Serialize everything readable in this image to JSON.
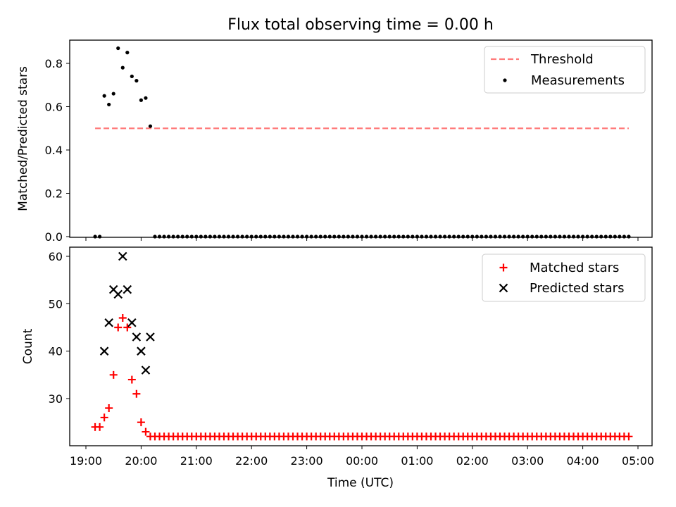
{
  "figure": {
    "title": "Flux total observing time = 0.00 h",
    "xlabel": "Time (UTC)",
    "colors": {
      "threshold": "#ff7b7b",
      "measurements": "#000000",
      "matched": "#ff0000",
      "predicted": "#000000"
    }
  },
  "chart_data": [
    {
      "type": "scatter",
      "panel": "top",
      "title": "Flux total observing time = 0.00 h",
      "xlabel": "",
      "ylabel": "Matched/Predicted stars",
      "x_axis": "time",
      "x_ticks": [
        "19:00",
        "20:00",
        "21:00",
        "22:00",
        "23:00",
        "00:00",
        "01:00",
        "02:00",
        "03:00",
        "04:00",
        "05:00"
      ],
      "ylim": [
        0,
        0.91
      ],
      "y_ticks": [
        "0.0",
        "0.2",
        "0.4",
        "0.6",
        "0.8"
      ],
      "grid": false,
      "legend_position": "top-right",
      "series": [
        {
          "name": "Threshold",
          "kind": "dashed-line",
          "x": [
            "19:10",
            "04:50"
          ],
          "y": [
            0.5,
            0.5
          ]
        },
        {
          "name": "Measurements",
          "kind": "points",
          "x": [
            "19:10",
            "19:15",
            "19:20",
            "19:25",
            "19:30",
            "19:35",
            "19:40",
            "19:45",
            "19:50",
            "19:55",
            "20:00",
            "20:05",
            "20:10",
            "20:15",
            "20:20",
            "20:25",
            "20:30",
            "20:35",
            "20:40",
            "20:45",
            "20:50",
            "20:55",
            "21:00",
            "21:05",
            "21:10",
            "21:15",
            "21:20",
            "21:25",
            "21:30",
            "21:35",
            "21:40",
            "21:45",
            "21:50",
            "21:55",
            "22:00",
            "22:05",
            "22:10",
            "22:15",
            "22:20",
            "22:25",
            "22:30",
            "22:35",
            "22:40",
            "22:45",
            "22:50",
            "22:55",
            "23:00",
            "23:05",
            "23:10",
            "23:15",
            "23:20",
            "23:25",
            "23:30",
            "23:35",
            "23:40",
            "23:45",
            "23:50",
            "23:55",
            "00:00",
            "00:05",
            "00:10",
            "00:15",
            "00:20",
            "00:25",
            "00:30",
            "00:35",
            "00:40",
            "00:45",
            "00:50",
            "00:55",
            "01:00",
            "01:05",
            "01:10",
            "01:15",
            "01:20",
            "01:25",
            "01:30",
            "01:35",
            "01:40",
            "01:45",
            "01:50",
            "01:55",
            "02:00",
            "02:05",
            "02:10",
            "02:15",
            "02:20",
            "02:25",
            "02:30",
            "02:35",
            "02:40",
            "02:45",
            "02:50",
            "02:55",
            "03:00",
            "03:05",
            "03:10",
            "03:15",
            "03:20",
            "03:25",
            "03:30",
            "03:35",
            "03:40",
            "03:45",
            "03:50",
            "03:55",
            "04:00",
            "04:05",
            "04:10",
            "04:15",
            "04:20",
            "04:25",
            "04:30",
            "04:35",
            "04:40",
            "04:45",
            "04:50"
          ],
          "y": [
            0,
            0,
            0.65,
            0.61,
            0.66,
            0.87,
            0.78,
            0.85,
            0.74,
            0.72,
            0.63,
            0.64,
            0.51,
            0,
            0,
            0,
            0,
            0,
            0,
            0,
            0,
            0,
            0,
            0,
            0,
            0,
            0,
            0,
            0,
            0,
            0,
            0,
            0,
            0,
            0,
            0,
            0,
            0,
            0,
            0,
            0,
            0,
            0,
            0,
            0,
            0,
            0,
            0,
            0,
            0,
            0,
            0,
            0,
            0,
            0,
            0,
            0,
            0,
            0,
            0,
            0,
            0,
            0,
            0,
            0,
            0,
            0,
            0,
            0,
            0,
            0,
            0,
            0,
            0,
            0,
            0,
            0,
            0,
            0,
            0,
            0,
            0,
            0,
            0,
            0,
            0,
            0,
            0,
            0,
            0,
            0,
            0,
            0,
            0,
            0,
            0,
            0,
            0,
            0,
            0,
            0,
            0,
            0,
            0,
            0,
            0,
            0,
            0,
            0,
            0,
            0,
            0,
            0,
            0,
            0,
            0,
            0
          ]
        }
      ]
    },
    {
      "type": "scatter",
      "panel": "bottom",
      "title": "",
      "xlabel": "Time (UTC)",
      "ylabel": "Count",
      "x_axis": "time",
      "x_ticks": [
        "19:00",
        "20:00",
        "21:00",
        "22:00",
        "23:00",
        "00:00",
        "01:00",
        "02:00",
        "03:00",
        "04:00",
        "05:00"
      ],
      "ylim": [
        20.5,
        61.8
      ],
      "y_ticks": [
        "30",
        "40",
        "50",
        "60"
      ],
      "grid": false,
      "legend_position": "top-right",
      "series": [
        {
          "name": "Matched stars",
          "kind": "plus-markers",
          "x": [
            "19:10",
            "19:15",
            "19:20",
            "19:25",
            "19:30",
            "19:35",
            "19:40",
            "19:45",
            "19:50",
            "19:55",
            "20:00",
            "20:05",
            "20:10",
            "20:15",
            "20:20",
            "20:25",
            "20:30",
            "20:35",
            "20:40",
            "20:45",
            "20:50",
            "20:55",
            "21:00",
            "21:05",
            "21:10",
            "21:15",
            "21:20",
            "21:25",
            "21:30",
            "21:35",
            "21:40",
            "21:45",
            "21:50",
            "21:55",
            "22:00",
            "22:05",
            "22:10",
            "22:15",
            "22:20",
            "22:25",
            "22:30",
            "22:35",
            "22:40",
            "22:45",
            "22:50",
            "22:55",
            "23:00",
            "23:05",
            "23:10",
            "23:15",
            "23:20",
            "23:25",
            "23:30",
            "23:35",
            "23:40",
            "23:45",
            "23:50",
            "23:55",
            "00:00",
            "00:05",
            "00:10",
            "00:15",
            "00:20",
            "00:25",
            "00:30",
            "00:35",
            "00:40",
            "00:45",
            "00:50",
            "00:55",
            "01:00",
            "01:05",
            "01:10",
            "01:15",
            "01:20",
            "01:25",
            "01:30",
            "01:35",
            "01:40",
            "01:45",
            "01:50",
            "01:55",
            "02:00",
            "02:05",
            "02:10",
            "02:15",
            "02:20",
            "02:25",
            "02:30",
            "02:35",
            "02:40",
            "02:45",
            "02:50",
            "02:55",
            "03:00",
            "03:05",
            "03:10",
            "03:15",
            "03:20",
            "03:25",
            "03:30",
            "03:35",
            "03:40",
            "03:45",
            "03:50",
            "03:55",
            "04:00",
            "04:05",
            "04:10",
            "04:15",
            "04:20",
            "04:25",
            "04:30",
            "04:35",
            "04:40",
            "04:45",
            "04:50"
          ],
          "y": [
            24,
            24,
            26,
            28,
            35,
            45,
            47,
            45,
            34,
            31,
            25,
            23,
            22,
            22,
            22,
            22,
            22,
            22,
            22,
            22,
            22,
            22,
            22,
            22,
            22,
            22,
            22,
            22,
            22,
            22,
            22,
            22,
            22,
            22,
            22,
            22,
            22,
            22,
            22,
            22,
            22,
            22,
            22,
            22,
            22,
            22,
            22,
            22,
            22,
            22,
            22,
            22,
            22,
            22,
            22,
            22,
            22,
            22,
            22,
            22,
            22,
            22,
            22,
            22,
            22,
            22,
            22,
            22,
            22,
            22,
            22,
            22,
            22,
            22,
            22,
            22,
            22,
            22,
            22,
            22,
            22,
            22,
            22,
            22,
            22,
            22,
            22,
            22,
            22,
            22,
            22,
            22,
            22,
            22,
            22,
            22,
            22,
            22,
            22,
            22,
            22,
            22,
            22,
            22,
            22,
            22,
            22,
            22,
            22,
            22,
            22,
            22,
            22,
            22,
            22,
            22,
            22
          ]
        },
        {
          "name": "Predicted stars",
          "kind": "x-markers",
          "x": [
            "19:20",
            "19:25",
            "19:30",
            "19:35",
            "19:40",
            "19:45",
            "19:50",
            "19:55",
            "20:00",
            "20:05",
            "20:10"
          ],
          "y": [
            40,
            46,
            53,
            52,
            60,
            53,
            46,
            43,
            40,
            36,
            43
          ]
        }
      ]
    }
  ]
}
